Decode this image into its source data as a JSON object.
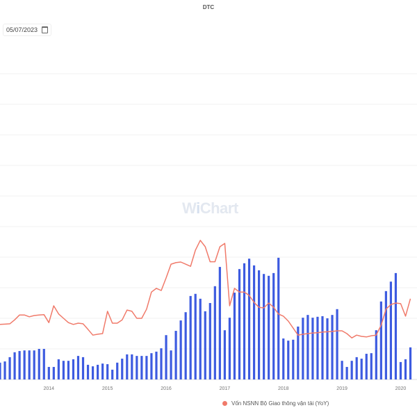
{
  "title": "DTC",
  "date_input": {
    "value": "05/07/2023",
    "icon": "calendar-icon"
  },
  "watermark": "WiChart",
  "chart_data": {
    "type": "bar+line",
    "title": "DTC",
    "categories": [
      "2013-03",
      "2013-04",
      "2013-05",
      "2013-06",
      "2013-07",
      "2013-08",
      "2013-09",
      "2013-10",
      "2013-11",
      "2013-12",
      "2014-01",
      "2014-02",
      "2014-03",
      "2014-04",
      "2014-05",
      "2014-06",
      "2014-07",
      "2014-08",
      "2014-09",
      "2014-10",
      "2014-11",
      "2014-12",
      "2015-01",
      "2015-02",
      "2015-03",
      "2015-04",
      "2015-05",
      "2015-06",
      "2015-07",
      "2015-08",
      "2015-09",
      "2015-10",
      "2015-11",
      "2015-12",
      "2016-01",
      "2016-02",
      "2016-03",
      "2016-04",
      "2016-05",
      "2016-06",
      "2016-07",
      "2016-08",
      "2016-09",
      "2016-10",
      "2016-11",
      "2016-12",
      "2017-01",
      "2017-02",
      "2017-03",
      "2017-04",
      "2017-05",
      "2017-06",
      "2017-07",
      "2017-08",
      "2017-09",
      "2017-10",
      "2017-11",
      "2017-12",
      "2018-01",
      "2018-02",
      "2018-03",
      "2018-04",
      "2018-05",
      "2018-06",
      "2018-07",
      "2018-08",
      "2018-09",
      "2018-10",
      "2018-11",
      "2018-12",
      "2019-01",
      "2019-02",
      "2019-03",
      "2019-04",
      "2019-05",
      "2019-06",
      "2019-07",
      "2019-08",
      "2019-09",
      "2019-10",
      "2019-11",
      "2019-12",
      "2020-01",
      "2020-02",
      "2020-03"
    ],
    "x_tick_labels": [
      "2014",
      "2015",
      "2016",
      "2017",
      "2018",
      "2019",
      "2020"
    ],
    "series": [
      {
        "type": "bar",
        "color": "#3d5be0",
        "values": [
          5.5,
          5.9,
          7.3,
          8.9,
          9.3,
          9.5,
          9.5,
          9.5,
          10,
          10,
          4.1,
          4.1,
          6.6,
          6.1,
          6.1,
          6.6,
          7.7,
          7.3,
          4.8,
          4.3,
          4.8,
          5.2,
          5,
          3.2,
          5.5,
          6.8,
          8.2,
          8.2,
          7.7,
          7.7,
          7.7,
          8.6,
          9.1,
          10.2,
          14.5,
          9.5,
          15.9,
          19.3,
          22,
          27.3,
          28,
          26.4,
          22.3,
          25,
          30.5,
          36.8,
          16.1,
          20.2,
          28.4,
          36.1,
          38,
          39.5,
          37.3,
          35.7,
          34.5,
          33.9,
          34.8,
          39.8,
          13.4,
          12.7,
          13,
          17.3,
          20.2,
          21.1,
          20.2,
          20.5,
          20.7,
          20,
          21.1,
          23,
          6.1,
          4.1,
          6.1,
          7.3,
          6.8,
          8.4,
          8.6,
          16.1,
          25.5,
          28.9,
          32,
          34.8,
          5.7,
          6.6,
          10.5
        ]
      },
      {
        "type": "line",
        "name": "Vốn NSNN Bộ Giao thông vận tải (YoY)",
        "color": "#f07a6a",
        "values": [
          18,
          18.1,
          18.2,
          19.5,
          21.1,
          21.1,
          20.5,
          20.9,
          21.1,
          21.2,
          18.6,
          24.1,
          21.4,
          20,
          18.6,
          18,
          18.4,
          18.2,
          16.4,
          14.5,
          14.8,
          15,
          22.3,
          18.4,
          18.4,
          19.5,
          22.7,
          22.3,
          20,
          20,
          23,
          28.6,
          29.8,
          29.1,
          33.2,
          37.7,
          38.2,
          38.4,
          37.7,
          37,
          42.3,
          45.5,
          43.4,
          38.5,
          38.5,
          43.4,
          44.5,
          24.1,
          29.8,
          28.6,
          28.6,
          27.5,
          25.2,
          23.6,
          23.4,
          25,
          23.6,
          21.4,
          20.7,
          19.1,
          16.8,
          14.5,
          14.8,
          15,
          15.2,
          15.3,
          15.5,
          15.6,
          15.7,
          15.9,
          15.9,
          15,
          13.6,
          14.5,
          14.1,
          13.9,
          14.3,
          14.5,
          17.7,
          23,
          24.5,
          25,
          24.8,
          20.7,
          26.4
        ]
      }
    ],
    "ylim": [
      0,
      110
    ],
    "grid": true,
    "legend": "bottom"
  },
  "legend": {
    "label": "Vốn NSNN Bộ Giao thông vận tải (YoY)",
    "color": "#f07a6a"
  }
}
